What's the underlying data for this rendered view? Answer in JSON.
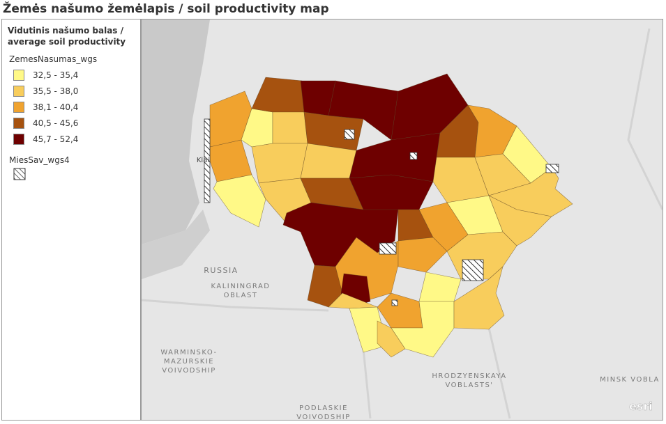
{
  "header": {
    "title": "Žemės našumo žemėlapis / soil productivity map"
  },
  "legend": {
    "heading": [
      "Vidutinis našumo balas /",
      "average soil productivity"
    ],
    "layers": [
      {
        "name": "ZemesNasumas_wgs",
        "items": [
          {
            "label": "32,5 - 35,4",
            "color": "#fff987"
          },
          {
            "label": "35,5 - 38,0",
            "color": "#f8cd5c"
          },
          {
            "label": "38,1 - 40,4",
            "color": "#f0a32f"
          },
          {
            "label": "40,5 - 45,6",
            "color": "#a6520f"
          },
          {
            "label": "45,7 - 52,4",
            "color": "#6e0000"
          }
        ]
      },
      {
        "name": "MiesSav_wgs4"
      }
    ]
  },
  "map": {
    "labels": [
      {
        "lines": [
          "Klai"
        ]
      },
      {
        "lines": [
          "RUSSIA"
        ]
      },
      {
        "lines": [
          "KALININGRAD",
          "OBLAST"
        ]
      },
      {
        "lines": [
          "WARMINSKO-",
          "MAZURSKIE",
          "VOIVODSHIP"
        ]
      },
      {
        "lines": [
          "PODLASKIE",
          "VOIVODSHIP"
        ]
      },
      {
        "lines": [
          "HRODZYENSKAYA",
          "VOBLASTS'"
        ]
      },
      {
        "lines": [
          "MINSK VOBLA"
        ]
      }
    ],
    "attribution": "esri"
  }
}
